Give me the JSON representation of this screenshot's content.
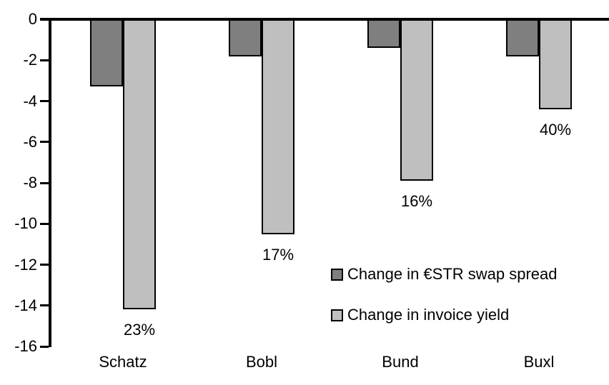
{
  "chart": {
    "background_color": "#ffffff",
    "axis_color": "#000000",
    "text_color": "#000000"
  },
  "chart_data": {
    "type": "bar",
    "title": "",
    "xlabel": "",
    "ylabel": "",
    "categories": [
      "Schatz",
      "Bobl",
      "Bund",
      "Buxl"
    ],
    "series": [
      {
        "name": "Change in €STR swap spread",
        "color": "#7f7f7f",
        "values": [
          -3.3,
          -1.8,
          -1.4,
          -1.8
        ]
      },
      {
        "name": "Change in invoice yield",
        "color": "#bfbfbf",
        "values": [
          -14.2,
          -10.5,
          -7.9,
          -4.4
        ],
        "point_labels": [
          "23%",
          "17%",
          "16%",
          "40%"
        ]
      }
    ],
    "ylim": [
      -16,
      0
    ],
    "yticks": [
      "0",
      "-2",
      "-4",
      "-6",
      "-8",
      "-10",
      "-12",
      "-14",
      "-16"
    ],
    "grid": false,
    "bar_border_color": "#000000",
    "legend_position": "inside-middle-right"
  }
}
